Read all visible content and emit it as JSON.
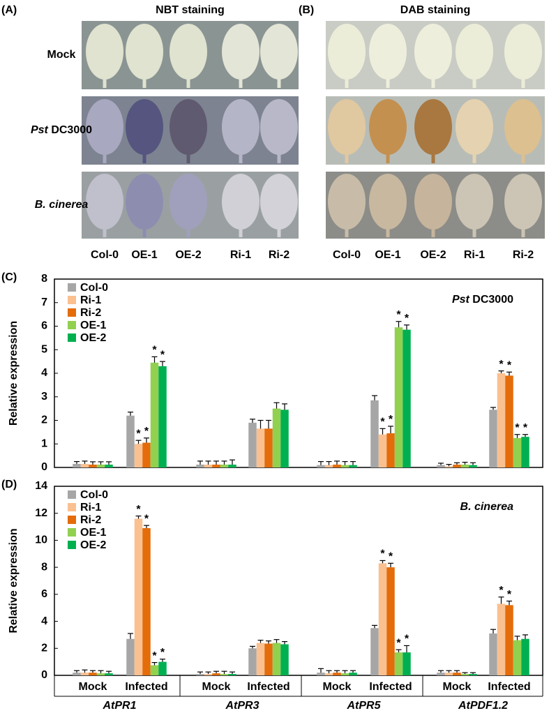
{
  "figure": {
    "panels": [
      {
        "label": "(A)",
        "title": "NBT staining"
      },
      {
        "label": "(B)",
        "title": "DAB staining"
      }
    ],
    "rows": [
      [
        "Mock"
      ],
      [
        "Pst",
        " DC3000"
      ],
      [
        "B. cinerea"
      ]
    ],
    "columns": [
      "Col-0",
      "OE-1",
      "OE-2",
      "Ri-1",
      "Ri-2"
    ]
  },
  "chart_data": [
    {
      "type": "bar",
      "panel_label": "(C)",
      "y_label": "Relative expression",
      "annotation": [
        "Pst",
        " DC3000"
      ],
      "categories": [
        null,
        null,
        null,
        null,
        null,
        null,
        null,
        null
      ],
      "groups": [
        "AtPR1",
        "AtPR3",
        "AtPR5",
        "AtPDF1.2"
      ],
      "ylim": [
        0,
        8
      ],
      "yticks": [
        0,
        1,
        2,
        3,
        4,
        5,
        6,
        7,
        8
      ],
      "series": [
        {
          "name": "Col-0",
          "color": "#a6a6a6",
          "values": [
            0.15,
            2.2,
            0.12,
            1.9,
            0.1,
            2.85,
            0.1,
            2.45
          ],
          "errors": [
            0.1,
            0.15,
            0.15,
            0.15,
            0.15,
            0.2,
            0.08,
            0.1
          ],
          "marks": [
            null,
            null,
            null,
            null,
            null,
            null,
            null,
            null
          ]
        },
        {
          "name": "Ri-1",
          "color": "#fac090",
          "values": [
            0.15,
            1.0,
            0.12,
            1.65,
            0.1,
            1.4,
            0.05,
            4.0
          ],
          "errors": [
            0.12,
            0.15,
            0.15,
            0.35,
            0.15,
            0.25,
            0.08,
            0.1
          ],
          "marks": [
            null,
            "*",
            null,
            null,
            null,
            "*",
            null,
            "*"
          ]
        },
        {
          "name": "Ri-2",
          "color": "#e46c0a",
          "values": [
            0.12,
            1.05,
            0.12,
            1.65,
            0.12,
            1.45,
            0.12,
            3.9
          ],
          "errors": [
            0.12,
            0.2,
            0.15,
            0.35,
            0.15,
            0.3,
            0.08,
            0.15
          ],
          "marks": [
            null,
            "*",
            null,
            null,
            null,
            "*",
            null,
            "*"
          ]
        },
        {
          "name": "OE-1",
          "color": "#92d050",
          "values": [
            0.12,
            4.45,
            0.12,
            2.5,
            0.1,
            5.95,
            0.12,
            1.25
          ],
          "errors": [
            0.12,
            0.25,
            0.15,
            0.25,
            0.15,
            0.25,
            0.1,
            0.15
          ],
          "marks": [
            null,
            "*",
            null,
            null,
            null,
            "*",
            null,
            "*"
          ]
        },
        {
          "name": "OE-2",
          "color": "#00b050",
          "values": [
            0.12,
            4.3,
            0.12,
            2.45,
            0.1,
            5.85,
            0.1,
            1.3
          ],
          "errors": [
            0.12,
            0.2,
            0.2,
            0.25,
            0.15,
            0.2,
            0.1,
            0.1
          ],
          "marks": [
            null,
            "*",
            null,
            null,
            null,
            "*",
            null,
            "*"
          ]
        }
      ]
    },
    {
      "type": "bar",
      "panel_label": "(D)",
      "y_label": "Relative expression",
      "annotation": [
        "B. cinerea"
      ],
      "categories": [
        "Mock",
        "Infected",
        "Mock",
        "Infected",
        "Mock",
        "Infected",
        "Mock",
        "Infected"
      ],
      "groups": [
        "AtPR1",
        "AtPR3",
        "AtPR5",
        "AtPDF1.2"
      ],
      "ylim": [
        0,
        14
      ],
      "yticks": [
        0,
        2,
        4,
        6,
        8,
        10,
        12,
        14
      ],
      "series": [
        {
          "name": "Col-0",
          "color": "#a6a6a6",
          "values": [
            0.2,
            2.7,
            0.1,
            2.0,
            0.2,
            3.5,
            0.2,
            3.1
          ],
          "errors": [
            0.15,
            0.4,
            0.15,
            0.15,
            0.3,
            0.2,
            0.15,
            0.3
          ],
          "marks": [
            null,
            null,
            null,
            null,
            null,
            null,
            null,
            null
          ]
        },
        {
          "name": "Ri-1",
          "color": "#fac090",
          "values": [
            0.2,
            11.6,
            0.1,
            2.4,
            0.15,
            8.3,
            0.2,
            5.3
          ],
          "errors": [
            0.2,
            0.2,
            0.15,
            0.2,
            0.2,
            0.2,
            0.15,
            0.5
          ],
          "marks": [
            null,
            "*",
            null,
            null,
            null,
            "*",
            null,
            "*"
          ]
        },
        {
          "name": "Ri-2",
          "color": "#e46c0a",
          "values": [
            0.2,
            10.9,
            0.15,
            2.35,
            0.2,
            8.0,
            0.2,
            5.2
          ],
          "errors": [
            0.15,
            0.2,
            0.15,
            0.2,
            0.15,
            0.3,
            0.15,
            0.3
          ],
          "marks": [
            null,
            "*",
            null,
            null,
            null,
            "*",
            null,
            "*"
          ]
        },
        {
          "name": "OE-1",
          "color": "#92d050",
          "values": [
            0.15,
            0.75,
            0.1,
            2.4,
            0.15,
            1.7,
            0.1,
            2.6
          ],
          "errors": [
            0.2,
            0.2,
            0.2,
            0.25,
            0.2,
            0.2,
            0.1,
            0.3
          ],
          "marks": [
            null,
            "*",
            null,
            null,
            null,
            "*",
            null,
            null
          ]
        },
        {
          "name": "OE-2",
          "color": "#00b050",
          "values": [
            0.15,
            1.0,
            0.1,
            2.3,
            0.2,
            1.7,
            0.1,
            2.7
          ],
          "errors": [
            0.15,
            0.2,
            0.15,
            0.2,
            0.15,
            0.5,
            0.1,
            0.3
          ],
          "marks": [
            null,
            "*",
            null,
            null,
            null,
            "*",
            null,
            null
          ]
        }
      ]
    }
  ]
}
